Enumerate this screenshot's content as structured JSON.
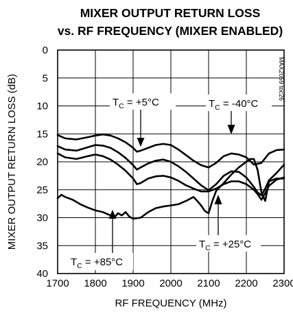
{
  "chart_data": {
    "type": "line",
    "title_line1": "MIXER OUTPUT RETURN LOSS",
    "title_line2": "vs. RF FREQUENCY (MIXER ENABLED)",
    "xlabel": "RF FREQUENCY (MHz)",
    "ylabel": "MIXER OUTPUT RETURN LOSS (dB)",
    "side_label": "MAX2059 toc26",
    "xlim": [
      1700,
      2300
    ],
    "ylim": [
      0,
      40
    ],
    "y_inverted": true,
    "grid": true,
    "x_ticks": [
      1700,
      1800,
      1900,
      2000,
      2100,
      2200,
      2300
    ],
    "y_ticks": [
      0,
      5,
      10,
      15,
      20,
      25,
      30,
      35,
      40
    ],
    "series": [
      {
        "name": "-40°C",
        "color": "#000000",
        "x": [
          1700,
          1720,
          1750,
          1780,
          1800,
          1820,
          1840,
          1860,
          1880,
          1900,
          1910,
          1920,
          1940,
          1960,
          1980,
          2000,
          2020,
          2040,
          2060,
          2080,
          2100,
          2120,
          2140,
          2160,
          2180,
          2200,
          2220,
          2240,
          2260,
          2280,
          2300
        ],
        "y": [
          15.2,
          15.8,
          16.0,
          15.6,
          15.3,
          15.1,
          15.3,
          15.8,
          16.5,
          17.5,
          18.2,
          18.0,
          17.5,
          17.0,
          16.8,
          17.0,
          17.8,
          18.8,
          19.8,
          20.6,
          21.0,
          20.2,
          19.0,
          18.5,
          18.7,
          19.2,
          20.5,
          20.2,
          18.5,
          17.9,
          17.8
        ]
      },
      {
        "name": "+5°C",
        "color": "#000000",
        "x": [
          1700,
          1720,
          1750,
          1780,
          1800,
          1820,
          1840,
          1860,
          1880,
          1900,
          1910,
          1920,
          1940,
          1960,
          1980,
          2000,
          2020,
          2040,
          2060,
          2080,
          2100,
          2120,
          2140,
          2160,
          2180,
          2200,
          2220,
          2230,
          2240,
          2250,
          2260,
          2280,
          2300
        ],
        "y": [
          17.2,
          17.8,
          18.0,
          17.4,
          17.0,
          17.1,
          17.5,
          18.3,
          19.3,
          20.6,
          21.4,
          21.0,
          20.3,
          19.8,
          19.6,
          20.0,
          20.8,
          21.8,
          23.0,
          24.2,
          25.1,
          24.0,
          22.5,
          21.7,
          21.8,
          22.8,
          24.5,
          25.5,
          26.0,
          24.8,
          23.3,
          22.0,
          20.5
        ]
      },
      {
        "name": "+25°C",
        "color": "#000000",
        "x": [
          1700,
          1720,
          1750,
          1780,
          1800,
          1820,
          1840,
          1860,
          1880,
          1900,
          1910,
          1920,
          1940,
          1960,
          1980,
          2000,
          2020,
          2040,
          2060,
          2080,
          2100,
          2120,
          2140,
          2160,
          2180,
          2200,
          2220,
          2230,
          2240,
          2250,
          2260,
          2280,
          2300
        ],
        "y": [
          18.5,
          19.2,
          19.5,
          19.0,
          18.7,
          19.0,
          19.6,
          20.5,
          21.6,
          23.0,
          24.0,
          23.8,
          23.0,
          22.6,
          22.5,
          22.8,
          23.4,
          24.2,
          24.8,
          25.3,
          25.3,
          24.8,
          24.0,
          23.5,
          23.5,
          24.0,
          25.0,
          25.8,
          26.8,
          25.6,
          24.3,
          23.2,
          22.8
        ]
      },
      {
        "name": "+85°C",
        "color": "#000000",
        "x": [
          1700,
          1710,
          1720,
          1740,
          1760,
          1780,
          1800,
          1820,
          1840,
          1850,
          1860,
          1870,
          1880,
          1890,
          1900,
          1920,
          1940,
          1960,
          1980,
          2000,
          2020,
          2040,
          2060,
          2070,
          2080,
          2090,
          2100,
          2110,
          2120,
          2140,
          2160,
          2180,
          2200,
          2210,
          2220,
          2230,
          2240,
          2250,
          2260,
          2280,
          2300
        ],
        "y": [
          26.5,
          25.9,
          26.3,
          26.8,
          27.6,
          28.2,
          28.7,
          29.0,
          29.6,
          30.0,
          29.2,
          29.6,
          29.0,
          29.8,
          30.2,
          30.0,
          29.0,
          28.3,
          28.0,
          27.8,
          27.6,
          27.0,
          26.3,
          27.0,
          27.8,
          28.8,
          29.2,
          27.0,
          25.2,
          23.8,
          22.3,
          21.0,
          20.0,
          19.5,
          19.5,
          21.5,
          25.5,
          27.0,
          23.5,
          23.0,
          23.0
        ]
      }
    ],
    "annotations": [
      {
        "main": "T",
        "sub": "C",
        "rest": " = +5°C"
      },
      {
        "main": "T",
        "sub": "C",
        "rest": " = -40°C"
      },
      {
        "main": "T",
        "sub": "C",
        "rest": " = +25°C"
      },
      {
        "main": "T",
        "sub": "C",
        "rest": " = +85°C"
      }
    ]
  }
}
